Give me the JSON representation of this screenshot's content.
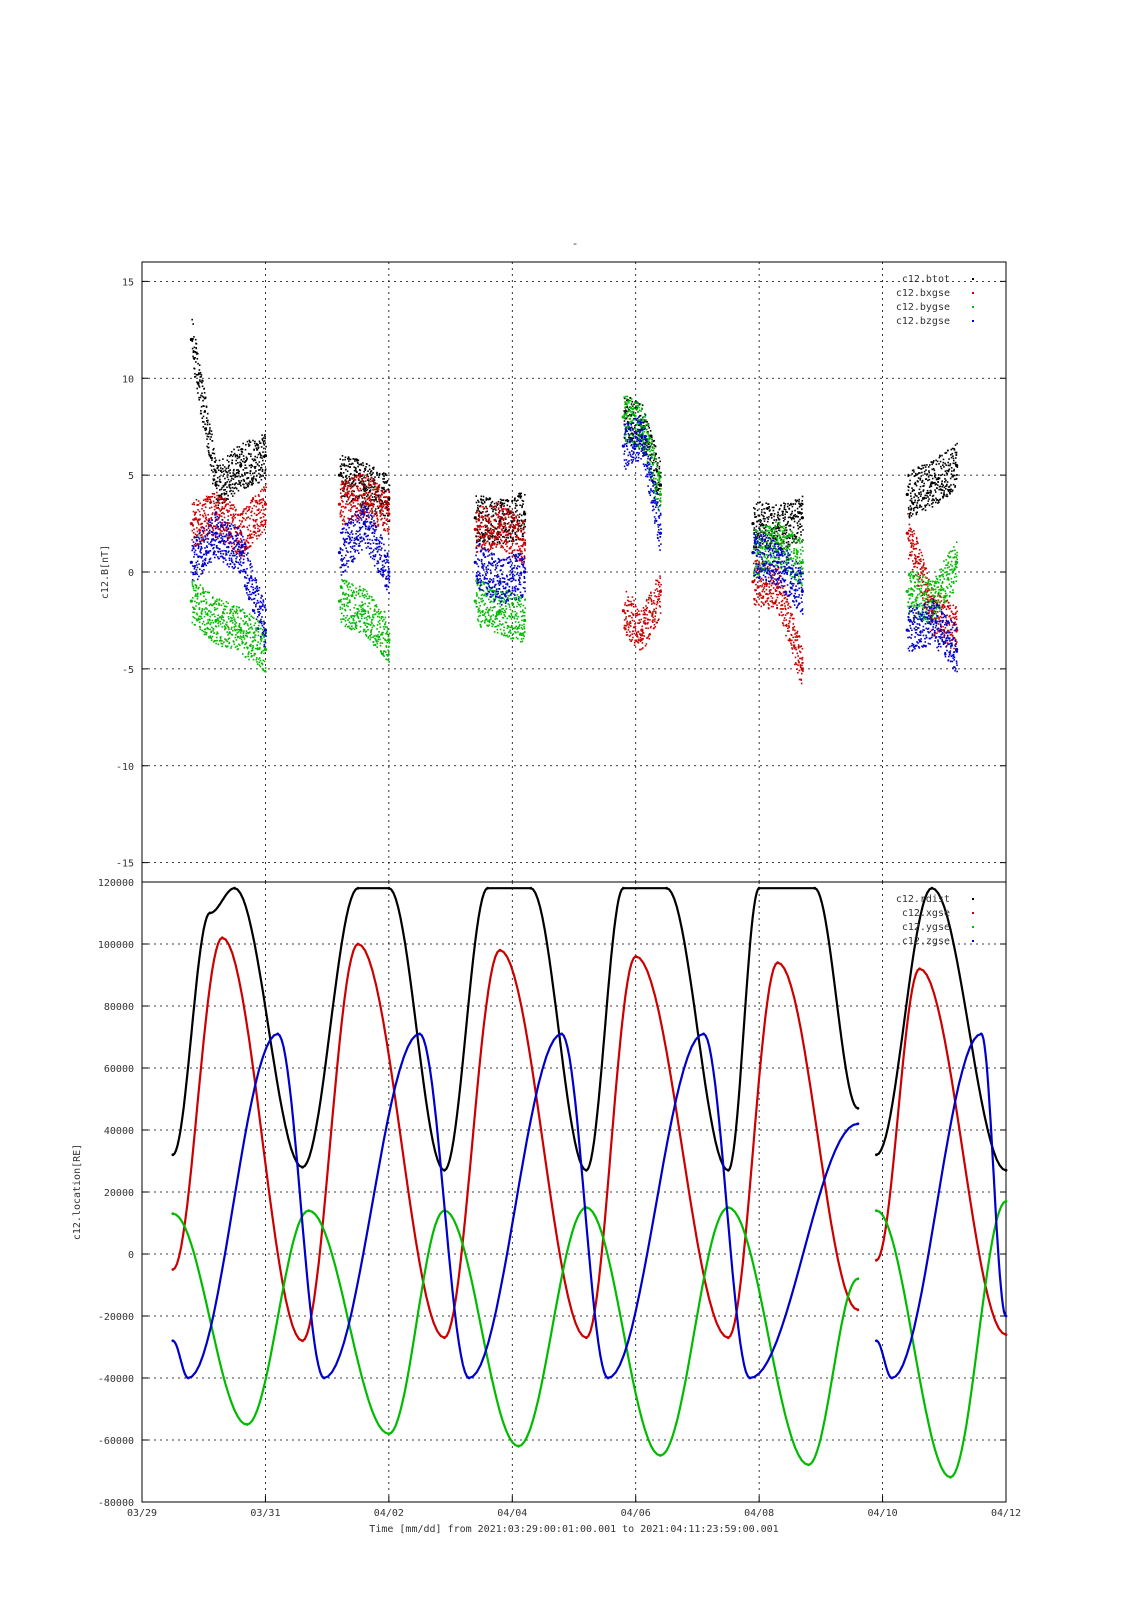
{
  "figure": {
    "title": "-",
    "xlabel": "Time [mm/dd]  from 2021:03:29:00:01:00.001  to  2021:04:11:23:59:00.001"
  },
  "chart_data": [
    {
      "type": "scatter",
      "title": "",
      "ylabel": "c12.B[nT]",
      "xlabel": "",
      "ylim": [
        -16,
        16
      ],
      "yticks": [
        -15,
        -10,
        -5,
        0,
        5,
        10,
        15
      ],
      "xlim": [
        0,
        14
      ],
      "x_unit": "days since 03/29",
      "grid": true,
      "legend_position": "top-right",
      "colors": {
        "c12.btot": "#000000",
        "c12.bxgse": "#cc0000",
        "c12.bygse": "#00bb00",
        "c12.bzgse": "#0000cc"
      },
      "series": [
        {
          "name": "c12.btot",
          "x": [
            0.8,
            1.2,
            1.6,
            2.0,
            3.2,
            3.6,
            4.0,
            5.4,
            5.8,
            6.2,
            7.8,
            8.1,
            8.4,
            9.9,
            10.3,
            10.7,
            12.4,
            12.8,
            13.2
          ],
          "y": [
            12.0,
            4.5,
            5.5,
            6.0,
            5.0,
            4.5,
            3.8,
            2.8,
            2.6,
            3.0,
            8.0,
            7.5,
            4.5,
            2.5,
            2.3,
            2.8,
            4.0,
            4.6,
            5.5
          ]
        },
        {
          "name": "c12.bxgse",
          "x": [
            0.8,
            1.2,
            1.6,
            2.0,
            3.2,
            3.6,
            4.0,
            5.4,
            5.8,
            6.2,
            7.8,
            8.1,
            8.4,
            9.9,
            10.3,
            10.7,
            12.4,
            12.8,
            13.2
          ],
          "y": [
            2.5,
            3.0,
            2.0,
            3.5,
            3.5,
            4.0,
            3.0,
            2.2,
            2.5,
            1.5,
            -2.0,
            -3.0,
            -1.0,
            -0.5,
            -0.8,
            -5.0,
            2.0,
            -2.0,
            -3.0
          ]
        },
        {
          "name": "c12.bygse",
          "x": [
            0.8,
            1.2,
            1.6,
            2.0,
            3.2,
            3.6,
            4.0,
            5.4,
            5.8,
            6.2,
            7.8,
            8.1,
            8.4,
            9.9,
            10.3,
            10.7,
            12.4,
            12.8,
            13.2
          ],
          "y": [
            -1.5,
            -2.5,
            -3.0,
            -4.0,
            -1.5,
            -2.0,
            -3.5,
            -1.5,
            -2.0,
            -2.5,
            8.0,
            7.5,
            4.0,
            1.0,
            1.5,
            0.5,
            -1.0,
            -1.5,
            0.5
          ]
        },
        {
          "name": "c12.bzgse",
          "x": [
            0.8,
            1.2,
            1.6,
            2.0,
            3.2,
            3.6,
            4.0,
            5.4,
            5.8,
            6.2,
            7.8,
            8.1,
            8.4,
            9.9,
            10.3,
            10.7,
            12.4,
            12.8,
            13.2
          ],
          "y": [
            0.5,
            2.0,
            1.0,
            -3.0,
            1.0,
            2.5,
            0.0,
            0.5,
            -0.5,
            0.0,
            6.5,
            7.0,
            2.0,
            1.0,
            0.5,
            -1.0,
            -3.0,
            -2.5,
            -4.0
          ]
        }
      ]
    },
    {
      "type": "line",
      "title": "",
      "ylabel": "c12.location[RE]",
      "xlabel": "",
      "ylim": [
        -80000,
        120000
      ],
      "yticks": [
        -80000,
        -60000,
        -40000,
        -20000,
        0,
        20000,
        40000,
        60000,
        80000,
        100000,
        120000
      ],
      "xlim": [
        0,
        14
      ],
      "xticks": [
        0,
        2,
        4,
        6,
        8,
        10,
        12,
        14
      ],
      "xticklabels": [
        "03/29",
        "03/31",
        "04/02",
        "04/04",
        "04/06",
        "04/08",
        "04/10",
        "04/12"
      ],
      "x_unit": "days since 03/29",
      "grid": true,
      "legend_position": "top-right",
      "colors": {
        "c12.rdist": "#000000",
        "c12.xgse": "#cc0000",
        "c12.ygse": "#00bb00",
        "c12.zgse": "#0000cc"
      },
      "orbit_period_days": 2.27,
      "data_gaps_days": [
        [
          0.25,
          0.5
        ],
        [
          11.6,
          11.9
        ]
      ],
      "series": [
        {
          "name": "c12.rdist",
          "x": [
            0.5,
            1.1,
            1.5,
            2.6,
            3.5,
            4.0,
            4.9,
            5.6,
            6.3,
            7.2,
            7.8,
            8.5,
            9.5,
            10.0,
            10.9,
            11.6,
            11.9,
            12.8,
            14.0
          ],
          "y": [
            32000,
            110000,
            118000,
            28000,
            118000,
            118000,
            27000,
            118000,
            118000,
            27000,
            118000,
            118000,
            27000,
            118000,
            118000,
            47000,
            32000,
            118000,
            27000
          ]
        },
        {
          "name": "c12.xgse",
          "x": [
            0.5,
            1.3,
            2.6,
            3.5,
            4.9,
            5.8,
            7.2,
            8.0,
            9.5,
            10.3,
            11.6,
            11.9,
            12.6,
            14.0
          ],
          "y": [
            -5000,
            102000,
            -28000,
            100000,
            -27000,
            98000,
            -27000,
            96000,
            -27000,
            94000,
            -18000,
            -2000,
            92000,
            -26000
          ]
        },
        {
          "name": "c12.ygse",
          "x": [
            0.5,
            1.7,
            2.7,
            4.0,
            4.9,
            6.1,
            7.2,
            8.4,
            9.5,
            10.8,
            11.6,
            11.9,
            13.1,
            14.0
          ],
          "y": [
            13000,
            -55000,
            14000,
            -58000,
            14000,
            -62000,
            15000,
            -65000,
            15000,
            -68000,
            -8000,
            14000,
            -72000,
            17000
          ]
        },
        {
          "name": "c12.zgse",
          "x": [
            0.5,
            0.75,
            2.2,
            2.95,
            4.5,
            5.3,
            6.8,
            7.55,
            9.1,
            9.85,
            11.6,
            11.9,
            12.15,
            13.6,
            14.0
          ],
          "y": [
            -28000,
            -40000,
            71000,
            -40000,
            71000,
            -40000,
            71000,
            -40000,
            71000,
            -40000,
            42000,
            -28000,
            -40000,
            71000,
            -20000
          ]
        }
      ]
    }
  ]
}
